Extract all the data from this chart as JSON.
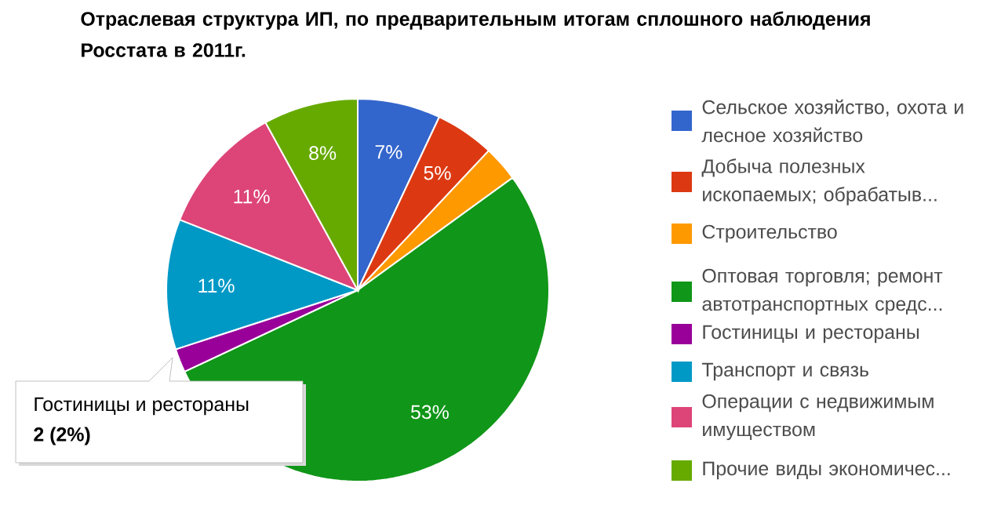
{
  "chart_data": {
    "type": "pie",
    "title": "Отраслевая структура ИП, по предварительным итогам сплошного наблюдения Росстата в 2011г.",
    "categories": [
      "Сельское хозяйство, охота и лесное хозяйство",
      "Добыча полезных ископаемых; обрабатыв...",
      "Строительство",
      "Оптовая торговля; ремонт автотранспортных средс...",
      "Гостиницы и рестораны",
      "Транспорт и связь",
      "Операции с недвижимым имуществом",
      "Прочие виды экономичес..."
    ],
    "values": [
      7,
      5,
      3,
      53,
      2,
      11,
      11,
      8
    ],
    "colors": [
      "#3366cc",
      "#dc3912",
      "#ff9900",
      "#109618",
      "#990099",
      "#0099c6",
      "#dd4477",
      "#66aa00"
    ],
    "value_labels": [
      "7%",
      "5%",
      null,
      "53%",
      null,
      "11%",
      "11%",
      "8%"
    ],
    "legend": "right",
    "annotations": [
      "Гостиницы и рестораны",
      "2 (2%)"
    ]
  }
}
